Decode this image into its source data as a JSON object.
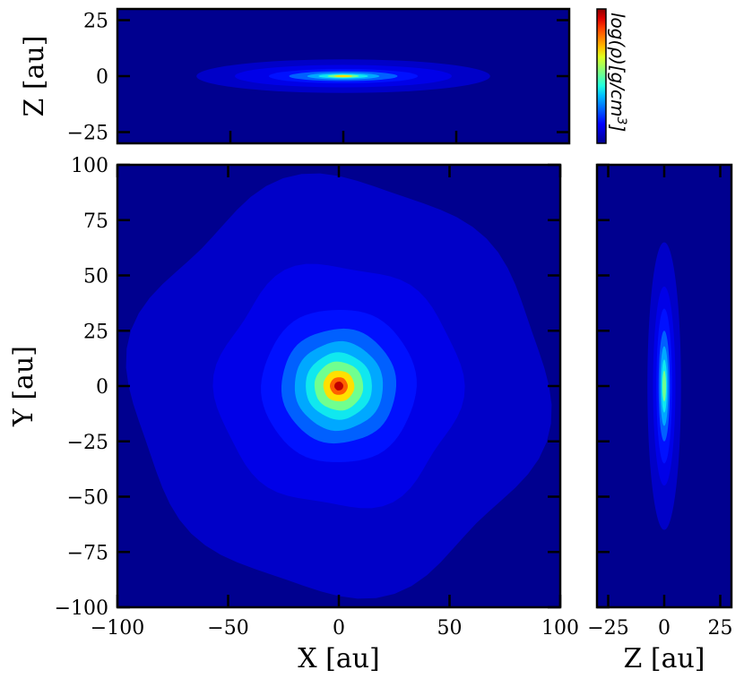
{
  "chart_data": [
    {
      "type": "heatmap",
      "panel": "xz-projection",
      "title": "",
      "xlabel": "",
      "ylabel": "Z [au]",
      "xlim": [
        -100,
        100
      ],
      "ylim": [
        -30,
        30
      ],
      "yticks": [
        -25,
        0,
        25
      ],
      "ytick_labels": [
        "−25",
        "0",
        "25"
      ],
      "xticks": [
        -50,
        0,
        50
      ],
      "xtick_labels_shown": false,
      "contours": [
        {
          "level": 1,
          "half_width": 65,
          "half_height": 7.5
        },
        {
          "level": 2,
          "half_width": 48,
          "half_height": 5
        },
        {
          "level": 3,
          "half_width": 33,
          "half_height": 3.2
        },
        {
          "level": 4,
          "half_width": 24,
          "half_height": 2.2
        },
        {
          "level": 5,
          "half_width": 16,
          "half_height": 1.5
        },
        {
          "level": 6,
          "half_width": 11,
          "half_height": 1.0
        },
        {
          "level": 7,
          "half_width": 7,
          "half_height": 0.7
        },
        {
          "level": 8,
          "half_width": 4,
          "half_height": 0.45
        }
      ]
    },
    {
      "type": "heatmap",
      "panel": "xy-projection",
      "title": "",
      "xlabel": "X [au]",
      "ylabel": "Y [au]",
      "xlim": [
        -100,
        100
      ],
      "ylim": [
        -100,
        100
      ],
      "xticks": [
        -100,
        -50,
        0,
        50,
        100
      ],
      "xtick_labels": [
        "−100",
        "−50",
        "0",
        "50",
        "100"
      ],
      "yticks": [
        -100,
        -75,
        -50,
        -25,
        0,
        25,
        50,
        75,
        100
      ],
      "ytick_labels": [
        "−100",
        "−75",
        "−50",
        "−25",
        "0",
        "25",
        "50",
        "75",
        "100"
      ],
      "contours": [
        {
          "level": 1,
          "radius": 93
        },
        {
          "level": 2,
          "radius": 55
        },
        {
          "level": 3,
          "radius": 35
        },
        {
          "level": 4,
          "radius": 26
        },
        {
          "level": 5,
          "radius": 20
        },
        {
          "level": 6,
          "radius": 15
        },
        {
          "level": 7,
          "radius": 11
        },
        {
          "level": 8,
          "radius": 7
        },
        {
          "level": 9,
          "radius": 4
        },
        {
          "level": 10,
          "radius": 2
        }
      ]
    },
    {
      "type": "heatmap",
      "panel": "zy-projection",
      "title": "",
      "xlabel": "Z [au]",
      "ylabel": "",
      "xlim": [
        -30,
        30
      ],
      "ylim": [
        -100,
        100
      ],
      "xticks": [
        -25,
        0,
        25
      ],
      "xtick_labels": [
        "−25",
        "0",
        "25"
      ],
      "yticks": [
        -100,
        -75,
        -50,
        -25,
        0,
        25,
        50,
        75,
        100
      ],
      "ytick_labels_shown": false,
      "contours": [
        {
          "level": 1,
          "half_width": 7.5,
          "half_height": 65
        },
        {
          "level": 2,
          "half_width": 5,
          "half_height": 45
        },
        {
          "level": 3,
          "half_width": 3.5,
          "half_height": 35
        },
        {
          "level": 4,
          "half_width": 2.5,
          "half_height": 25
        },
        {
          "level": 5,
          "half_width": 1.8,
          "half_height": 18
        },
        {
          "level": 6,
          "half_width": 1.2,
          "half_height": 12
        },
        {
          "level": 7,
          "half_width": 0.8,
          "half_height": 7
        }
      ]
    }
  ],
  "colorbar": {
    "label": "log(ρ)[g/cm",
    "label_superscript": "3",
    "label_suffix": "]",
    "colormap": "jet",
    "colors": [
      "#00008f",
      "#0000c8",
      "#0000ff",
      "#0040ff",
      "#0080ff",
      "#00c0ff",
      "#20ffdf",
      "#60ff9f",
      "#9fff60",
      "#dfff20",
      "#ffc000",
      "#ff8000",
      "#ff4000",
      "#df0000",
      "#8f0000"
    ]
  },
  "palette": {
    "levels": [
      "#00008f",
      "#0000c8",
      "#0000e8",
      "#0010ff",
      "#0060ff",
      "#00a8ff",
      "#10e8ef",
      "#70ff8f",
      "#ffe000",
      "#ff6000",
      "#c00000",
      "#800000"
    ]
  }
}
